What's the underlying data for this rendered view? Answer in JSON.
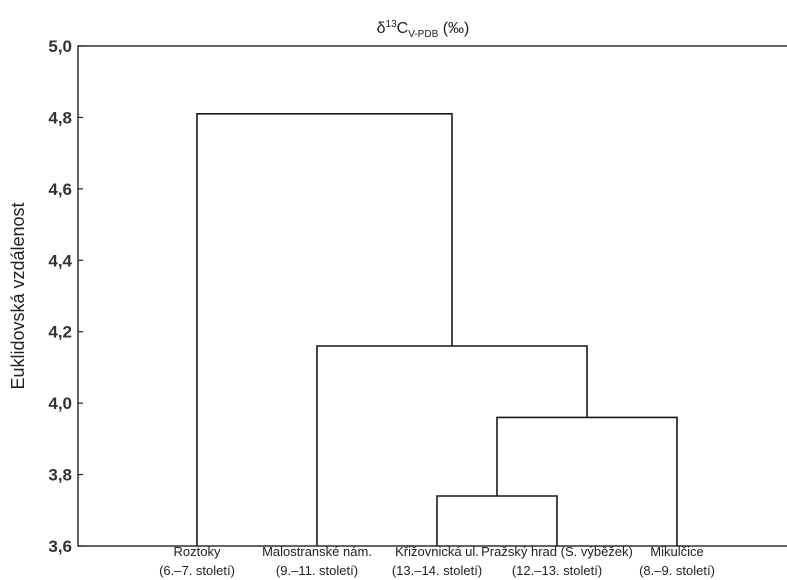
{
  "chart_data": {
    "type": "dendrogram",
    "title_parts": {
      "delta": "δ",
      "mass": "13",
      "element": "C",
      "sub": "V-PDB",
      "unit": " (‰)"
    },
    "ylabel": "Euklidovská vzdálenost",
    "ylim": [
      3.6,
      5.0
    ],
    "yticks": [
      {
        "value": 5.0,
        "label": "5,0"
      },
      {
        "value": 4.8,
        "label": "4,8"
      },
      {
        "value": 4.6,
        "label": "4,6"
      },
      {
        "value": 4.4,
        "label": "4,4"
      },
      {
        "value": 4.2,
        "label": "4,2"
      },
      {
        "value": 4.0,
        "label": "4,0"
      },
      {
        "value": 3.8,
        "label": "3,8"
      },
      {
        "value": 3.6,
        "label": "3,6"
      }
    ],
    "leaves": [
      {
        "id": "roztoky",
        "name": "Roztoky",
        "period": "(6.–7. století)"
      },
      {
        "id": "malostranske",
        "name": "Malostranské nám.",
        "period": "(9.–11. století)"
      },
      {
        "id": "krizovnicka",
        "name": "Křižovnická ul.",
        "period": "(13.–14. století)"
      },
      {
        "id": "prazsky-hrad",
        "name": "Pražský hrad (S. výběžek)",
        "period": "(12.–13. století)"
      },
      {
        "id": "mikulcice",
        "name": "Mikulčice",
        "period": "(8.–9. století)"
      }
    ],
    "merges": [
      {
        "id": "m1",
        "left": "krizovnicka",
        "right": "prazsky-hrad",
        "height": 3.74
      },
      {
        "id": "m2",
        "left": "m1",
        "right": "mikulcice",
        "height": 3.96
      },
      {
        "id": "m3",
        "left": "malostranske",
        "right": "m2",
        "height": 4.16
      },
      {
        "id": "m4",
        "left": "roztoky",
        "right": "m3",
        "height": 4.81
      }
    ],
    "grid": false,
    "legend": "none"
  }
}
